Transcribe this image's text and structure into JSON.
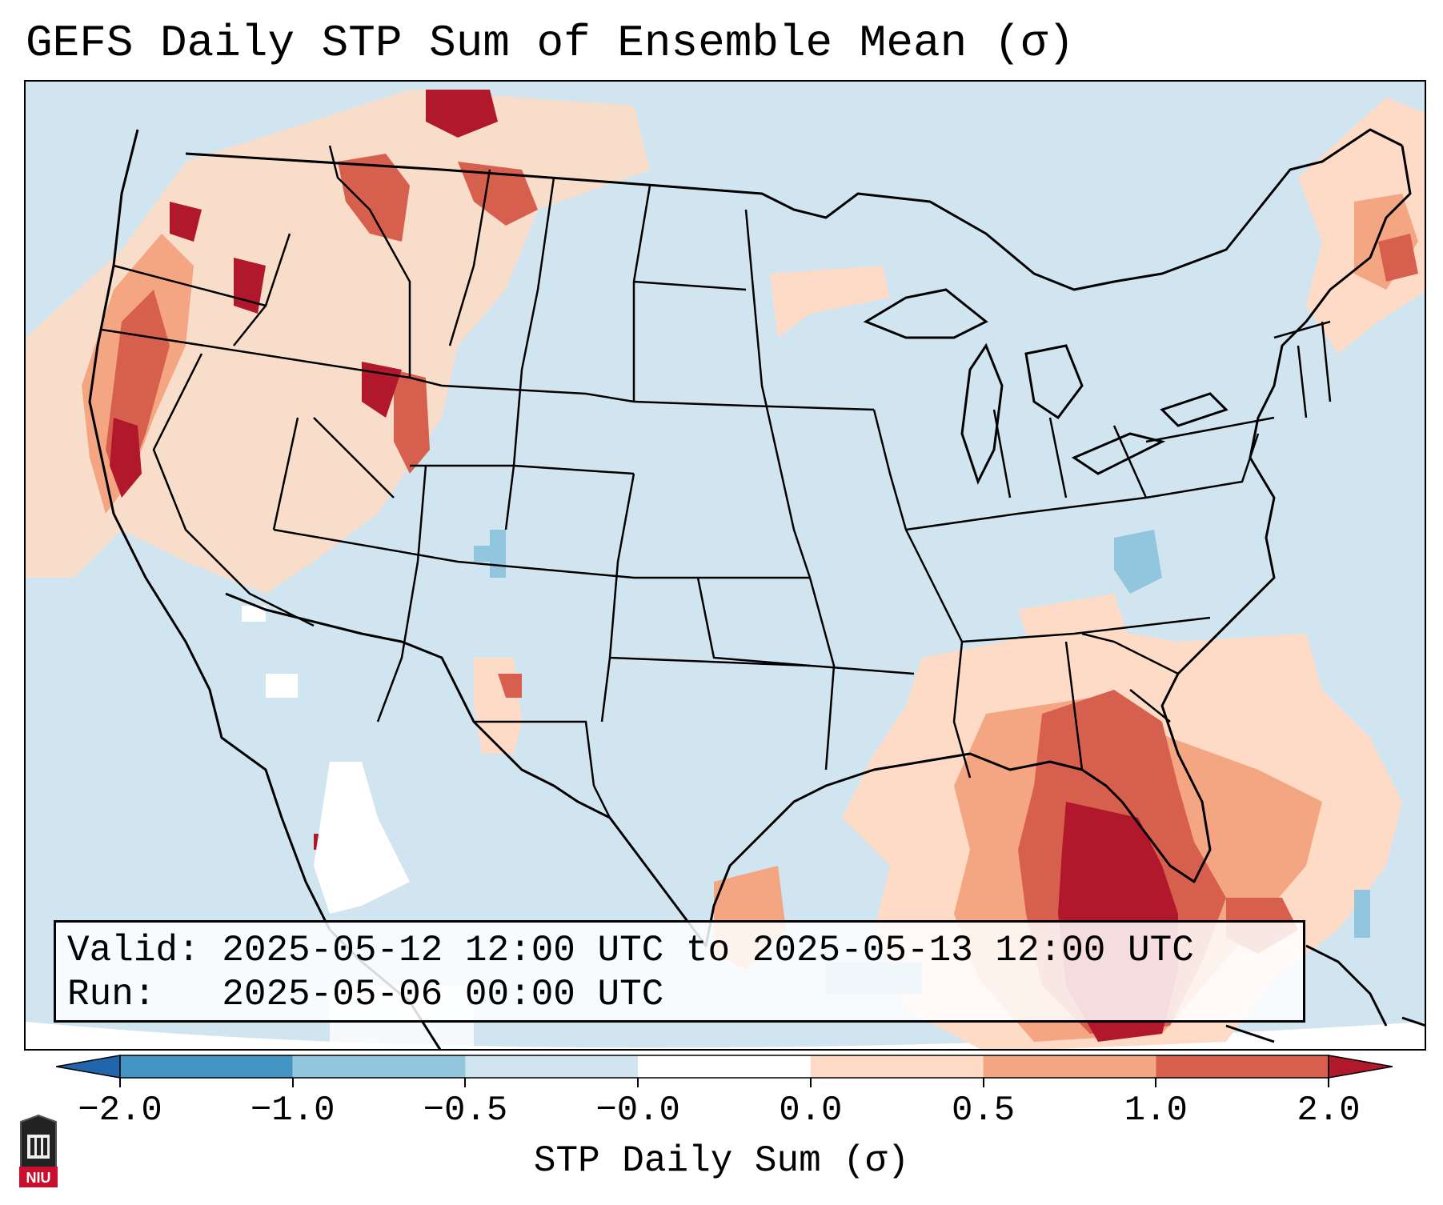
{
  "title": "GEFS Daily STP Sum of Ensemble Mean (σ)",
  "info": {
    "valid_line": "Valid: 2025-05-12 12:00 UTC to 2025-05-13 12:00 UTC",
    "run_line": "Run:   2025-05-06 00:00 UTC"
  },
  "colorbar": {
    "label": "STP Daily Sum (σ)",
    "ticks": [
      "−2.0",
      "−1.0",
      "−0.5",
      "−0.0",
      "0.0",
      "0.5",
      "1.0",
      "2.0"
    ],
    "bins": [
      {
        "from": -3.0,
        "to": -2.0,
        "color": "#2166ac"
      },
      {
        "from": -2.0,
        "to": -1.0,
        "color": "#4393c3"
      },
      {
        "from": -1.0,
        "to": -0.5,
        "color": "#92c5de"
      },
      {
        "from": -0.5,
        "to": 0.0,
        "color": "#d1e5f0"
      },
      {
        "from": 0.0,
        "to": 0.0,
        "color": "#ffffff"
      },
      {
        "from": 0.0,
        "to": 0.5,
        "color": "#fddbc7"
      },
      {
        "from": 0.5,
        "to": 1.0,
        "color": "#f4a582"
      },
      {
        "from": 1.0,
        "to": 2.0,
        "color": "#d6604d"
      },
      {
        "from": 2.0,
        "to": 3.0,
        "color": "#b2182b"
      }
    ]
  },
  "map": {
    "region": "CONUS",
    "background_color": "#d1e5f0",
    "feature_colors": {
      "light": "#fddbc7",
      "medium": "#f4a582",
      "strong": "#d6604d",
      "extreme": "#b2182b",
      "negative": "#92c5de",
      "neutral": "#ffffff"
    }
  },
  "logo": {
    "text": "NIU",
    "icon": "university-seal-icon"
  }
}
